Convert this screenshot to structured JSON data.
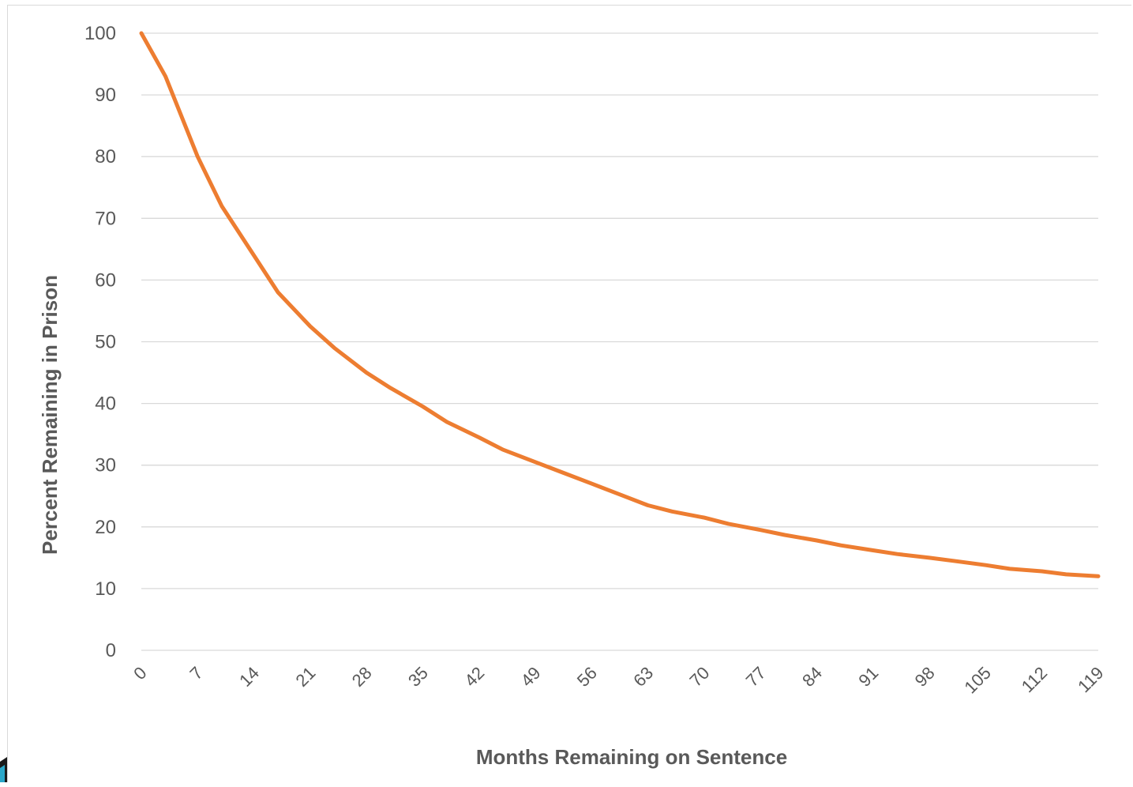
{
  "chart_data": {
    "type": "line",
    "title": "",
    "xlabel": "Months Remaining on Sentence",
    "ylabel": "Percent Remaining in Prison",
    "xlim": [
      0,
      119
    ],
    "ylim": [
      0,
      100
    ],
    "yticks": [
      "0",
      "10",
      "20",
      "30",
      "40",
      "50",
      "60",
      "70",
      "80",
      "90",
      "100"
    ],
    "xticks": [
      "0",
      "7",
      "14",
      "21",
      "28",
      "35",
      "42",
      "49",
      "56",
      "63",
      "70",
      "77",
      "84",
      "91",
      "98",
      "105",
      "112",
      "119"
    ],
    "grid": true,
    "legend": "none",
    "series": [
      {
        "color": "#ed7d31",
        "x": [
          0,
          3,
          7,
          10,
          14,
          17,
          21,
          24,
          28,
          31,
          35,
          38,
          42,
          45,
          49,
          52,
          56,
          59,
          63,
          66,
          70,
          73,
          77,
          80,
          84,
          87,
          91,
          94,
          98,
          101,
          105,
          108,
          112,
          115,
          119
        ],
        "y": [
          100,
          93,
          80,
          72,
          64,
          58,
          52.5,
          49,
          45,
          42.5,
          39.5,
          37,
          34.5,
          32.5,
          30.5,
          29,
          27,
          25.5,
          23.5,
          22.5,
          21.5,
          20.5,
          19.5,
          18.7,
          17.8,
          17,
          16.2,
          15.6,
          15,
          14.5,
          13.8,
          13.2,
          12.8,
          12.3,
          12
        ]
      }
    ]
  },
  "colors": {
    "grid": "#d9d9d9",
    "text": "#595959",
    "background": "#ffffff"
  }
}
